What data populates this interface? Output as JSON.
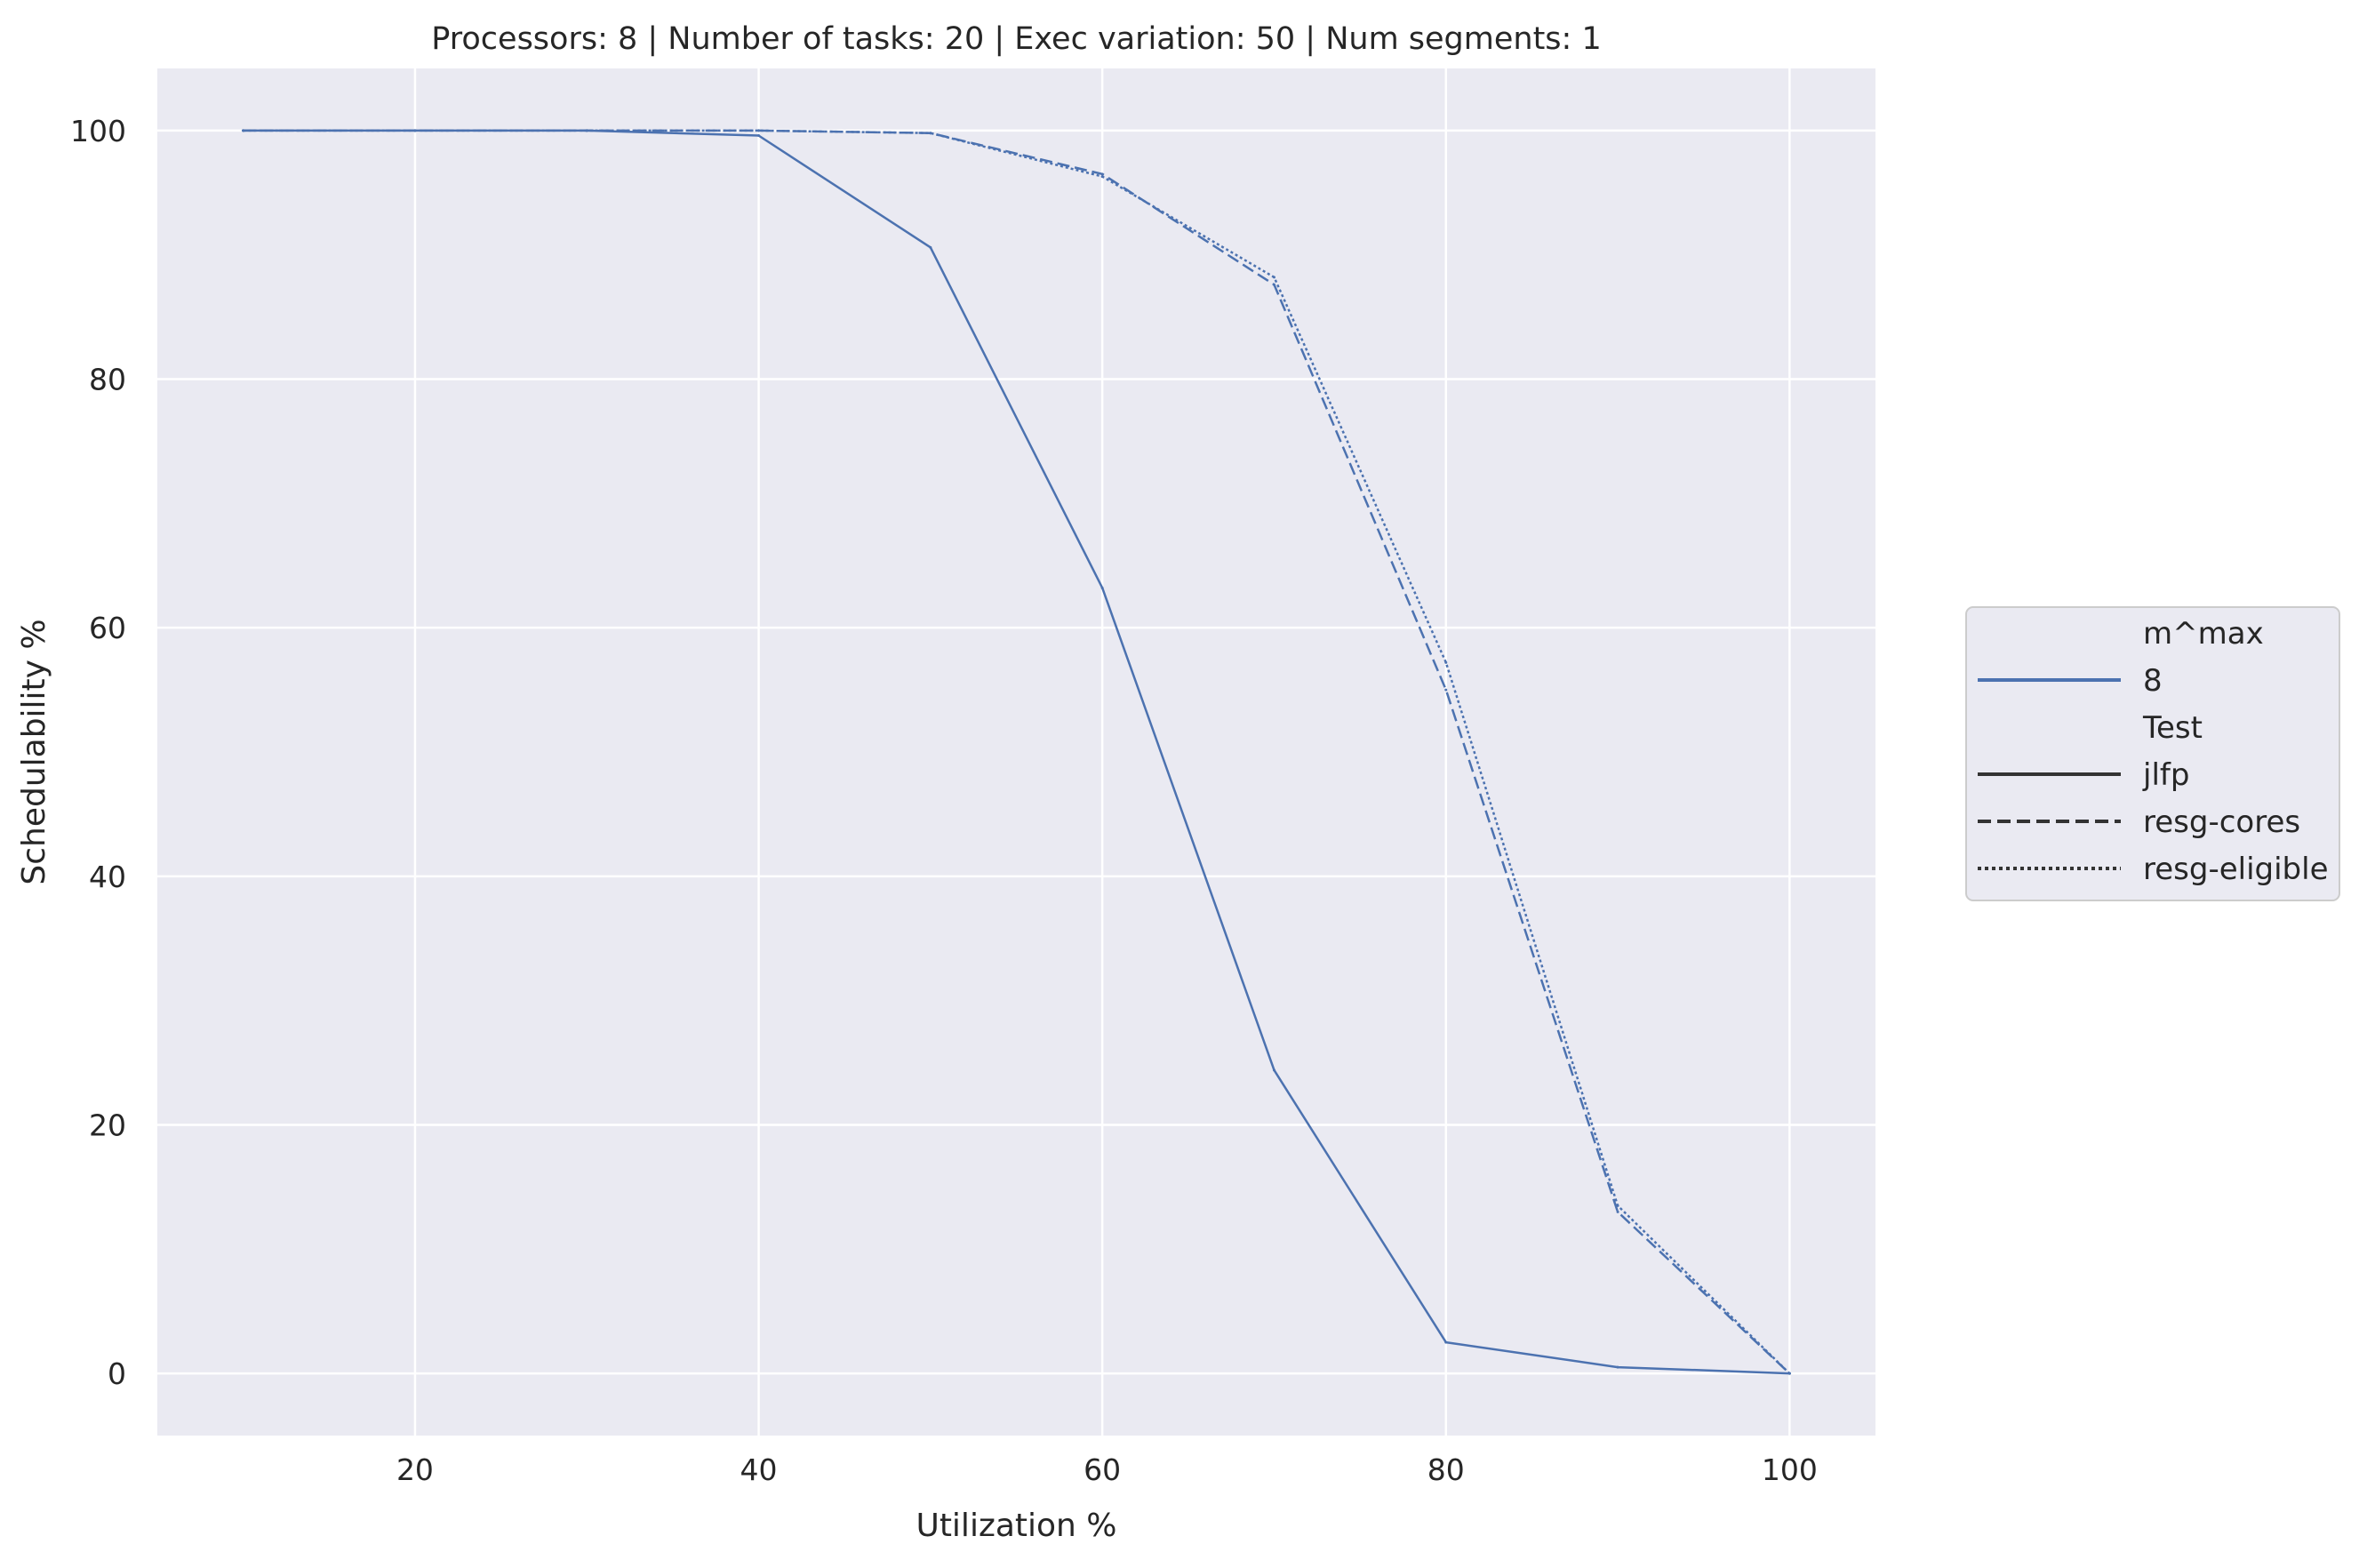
{
  "chart_data": {
    "type": "line",
    "title": "Processors: 8 | Number of tasks: 20 | Exec variation: 50 | Num segments: 1",
    "xlabel": "Utilization %",
    "ylabel": "Schedulability %",
    "xlim": [
      5,
      105
    ],
    "ylim": [
      -5,
      105
    ],
    "xticks": [
      20,
      40,
      60,
      80,
      100
    ],
    "yticks": [
      0,
      20,
      40,
      60,
      80,
      100
    ],
    "grid": true,
    "background": "#eaeaf2",
    "grid_color": "#ffffff",
    "series_color": "#4c72b0",
    "legend": {
      "placement": "right, outside plot",
      "hue_title": "m^max",
      "hue_entries": [
        {
          "label": "8",
          "color": "#4c72b0"
        }
      ],
      "style_title": "Test",
      "style_entries": [
        {
          "label": "jlfp",
          "dash": "solid"
        },
        {
          "label": "resg-cores",
          "dash": "dashed"
        },
        {
          "label": "resg-eligible",
          "dash": "dotted"
        }
      ]
    },
    "x": [
      10,
      20,
      30,
      40,
      50,
      60,
      70,
      80,
      90,
      100
    ],
    "series": [
      {
        "name": "jlfp",
        "dash": "solid",
        "values": [
          100,
          100,
          100,
          99.6,
          90.6,
          63.2,
          24.4,
          2.5,
          0.5,
          0
        ]
      },
      {
        "name": "resg-cores",
        "dash": "dashed",
        "values": [
          100,
          100,
          100,
          100,
          99.8,
          96.5,
          87.6,
          55.0,
          13.0,
          0
        ]
      },
      {
        "name": "resg-eligible",
        "dash": "dotted",
        "values": [
          100,
          100,
          100,
          100,
          99.8,
          96.3,
          88.2,
          57.2,
          13.5,
          0
        ]
      }
    ]
  }
}
